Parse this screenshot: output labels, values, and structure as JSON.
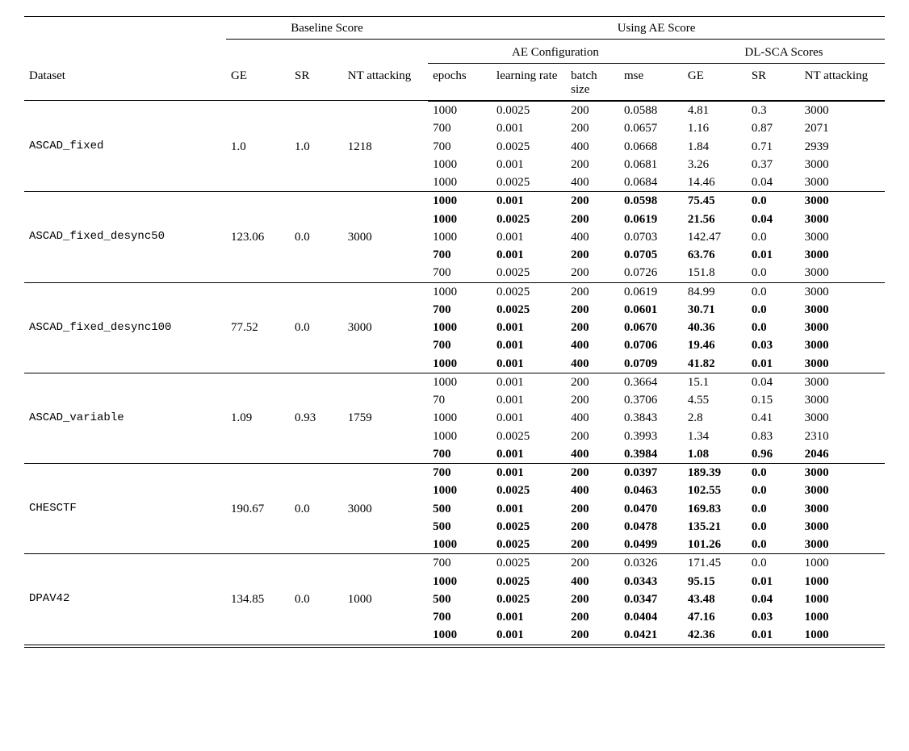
{
  "header": {
    "baseline": "Baseline Score",
    "ae": "Using AE Score",
    "ae_config": "AE Configuration",
    "dlsca": "DL-SCA Scores",
    "dataset": "Dataset",
    "ge": "GE",
    "sr": "SR",
    "nt": "NT attacking",
    "epochs": "epochs",
    "lr": "learning rate",
    "bs": "batch size",
    "mse": "mse"
  },
  "groups": [
    {
      "name": "ASCAD_fixed",
      "baseline": {
        "ge": "1.0",
        "sr": "1.0",
        "nt": "1218"
      },
      "rows": [
        {
          "b": false,
          "epochs": "1000",
          "lr": "0.0025",
          "bs": "200",
          "mse": "0.0588",
          "ge": "4.81",
          "sr": "0.3",
          "nt": "3000"
        },
        {
          "b": false,
          "epochs": "700",
          "lr": "0.001",
          "bs": "200",
          "mse": "0.0657",
          "ge": "1.16",
          "sr": "0.87",
          "nt": "2071"
        },
        {
          "b": false,
          "epochs": "700",
          "lr": "0.0025",
          "bs": "400",
          "mse": "0.0668",
          "ge": "1.84",
          "sr": "0.71",
          "nt": "2939"
        },
        {
          "b": false,
          "epochs": "1000",
          "lr": "0.001",
          "bs": "200",
          "mse": "0.0681",
          "ge": "3.26",
          "sr": "0.37",
          "nt": "3000"
        },
        {
          "b": false,
          "epochs": "1000",
          "lr": "0.0025",
          "bs": "400",
          "mse": "0.0684",
          "ge": "14.46",
          "sr": "0.04",
          "nt": "3000"
        }
      ]
    },
    {
      "name": "ASCAD_fixed_desync50",
      "baseline": {
        "ge": "123.06",
        "sr": "0.0",
        "nt": "3000"
      },
      "rows": [
        {
          "b": true,
          "epochs": "1000",
          "lr": "0.001",
          "bs": "200",
          "mse": "0.0598",
          "ge": "75.45",
          "sr": "0.0",
          "nt": "3000"
        },
        {
          "b": true,
          "epochs": "1000",
          "lr": "0.0025",
          "bs": "200",
          "mse": "0.0619",
          "ge": "21.56",
          "sr": "0.04",
          "nt": "3000"
        },
        {
          "b": false,
          "epochs": "1000",
          "lr": "0.001",
          "bs": "400",
          "mse": "0.0703",
          "ge": "142.47",
          "sr": "0.0",
          "nt": "3000"
        },
        {
          "b": true,
          "epochs": "700",
          "lr": "0.001",
          "bs": "200",
          "mse": "0.0705",
          "ge": "63.76",
          "sr": "0.01",
          "nt": "3000"
        },
        {
          "b": false,
          "epochs": "700",
          "lr": "0.0025",
          "bs": "200",
          "mse": "0.0726",
          "ge": "151.8",
          "sr": "0.0",
          "nt": "3000"
        }
      ]
    },
    {
      "name": "ASCAD_fixed_desync100",
      "baseline": {
        "ge": "77.52",
        "sr": "0.0",
        "nt": "3000"
      },
      "rows": [
        {
          "b": false,
          "epochs": "1000",
          "lr": "0.0025",
          "bs": "200",
          "mse": "0.0619",
          "ge": "84.99",
          "sr": "0.0",
          "nt": "3000"
        },
        {
          "b": true,
          "epochs": "700",
          "lr": "0.0025",
          "bs": "200",
          "mse": "0.0601",
          "ge": "30.71",
          "sr": "0.0",
          "nt": "3000"
        },
        {
          "b": true,
          "epochs": "1000",
          "lr": "0.001",
          "bs": "200",
          "mse": "0.0670",
          "ge": "40.36",
          "sr": "0.0",
          "nt": "3000"
        },
        {
          "b": true,
          "epochs": "700",
          "lr": "0.001",
          "bs": "400",
          "mse": "0.0706",
          "ge": "19.46",
          "sr": "0.03",
          "nt": "3000"
        },
        {
          "b": true,
          "epochs": "1000",
          "lr": "0.001",
          "bs": "400",
          "mse": "0.0709",
          "ge": "41.82",
          "sr": "0.01",
          "nt": "3000"
        }
      ]
    },
    {
      "name": "ASCAD_variable",
      "baseline": {
        "ge": "1.09",
        "sr": "0.93",
        "nt": "1759"
      },
      "rows": [
        {
          "b": false,
          "epochs": "1000",
          "lr": "0.001",
          "bs": "200",
          "mse": "0.3664",
          "ge": "15.1",
          "sr": "0.04",
          "nt": "3000"
        },
        {
          "b": false,
          "epochs": "70",
          "lr": "0.001",
          "bs": "200",
          "mse": "0.3706",
          "ge": "4.55",
          "sr": "0.15",
          "nt": "3000"
        },
        {
          "b": false,
          "epochs": "1000",
          "lr": "0.001",
          "bs": "400",
          "mse": "0.3843",
          "ge": "2.8",
          "sr": "0.41",
          "nt": "3000"
        },
        {
          "b": false,
          "epochs": "1000",
          "lr": "0.0025",
          "bs": "200",
          "mse": "0.3993",
          "ge": "1.34",
          "sr": "0.83",
          "nt": "2310"
        },
        {
          "b": true,
          "epochs": "700",
          "lr": "0.001",
          "bs": "400",
          "mse": "0.3984",
          "ge": "1.08",
          "sr": "0.96",
          "nt": "2046"
        }
      ]
    },
    {
      "name": "CHESCTF",
      "baseline": {
        "ge": "190.67",
        "sr": "0.0",
        "nt": "3000"
      },
      "rows": [
        {
          "b": true,
          "epochs": "700",
          "lr": "0.001",
          "bs": "200",
          "mse": "0.0397",
          "ge": "189.39",
          "sr": "0.0",
          "nt": "3000"
        },
        {
          "b": true,
          "epochs": "1000",
          "lr": "0.0025",
          "bs": "400",
          "mse": "0.0463",
          "ge": "102.55",
          "sr": "0.0",
          "nt": "3000"
        },
        {
          "b": true,
          "epochs": "500",
          "lr": "0.001",
          "bs": "200",
          "mse": "0.0470",
          "ge": "169.83",
          "sr": "0.0",
          "nt": "3000"
        },
        {
          "b": true,
          "epochs": "500",
          "lr": "0.0025",
          "bs": "200",
          "mse": "0.0478",
          "ge": "135.21",
          "sr": "0.0",
          "nt": "3000"
        },
        {
          "b": true,
          "epochs": "1000",
          "lr": "0.0025",
          "bs": "200",
          "mse": "0.0499",
          "ge": "101.26",
          "sr": "0.0",
          "nt": "3000"
        }
      ]
    },
    {
      "name": "DPAV42",
      "baseline": {
        "ge": "134.85",
        "sr": "0.0",
        "nt": "1000"
      },
      "rows": [
        {
          "b": false,
          "epochs": "700",
          "lr": "0.0025",
          "bs": "200",
          "mse": "0.0326",
          "ge": "171.45",
          "sr": "0.0",
          "nt": "1000"
        },
        {
          "b": true,
          "epochs": "1000",
          "lr": "0.0025",
          "bs": "400",
          "mse": "0.0343",
          "ge": "95.15",
          "sr": "0.01",
          "nt": "1000"
        },
        {
          "b": true,
          "epochs": "500",
          "lr": "0.0025",
          "bs": "200",
          "mse": "0.0347",
          "ge": "43.48",
          "sr": "0.04",
          "nt": "1000"
        },
        {
          "b": true,
          "epochs": "700",
          "lr": "0.001",
          "bs": "200",
          "mse": "0.0404",
          "ge": "47.16",
          "sr": "0.03",
          "nt": "1000"
        },
        {
          "b": true,
          "epochs": "1000",
          "lr": "0.001",
          "bs": "200",
          "mse": "0.0421",
          "ge": "42.36",
          "sr": "0.01",
          "nt": "1000"
        }
      ]
    }
  ]
}
